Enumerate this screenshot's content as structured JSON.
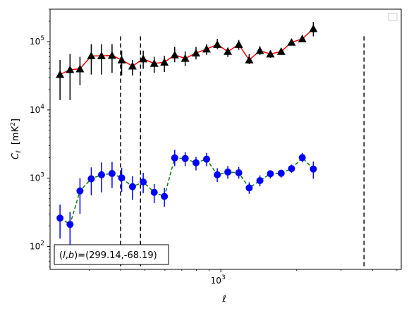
{
  "chart_data": {
    "type": "scatter",
    "title": "",
    "xlabel": "ℓ",
    "ylabel_main": "C",
    "ylabel_sub": "ℓ",
    "ylabel_unit_open": "[mK",
    "ylabel_unit_sup": "2",
    "ylabel_unit_close": "]",
    "x_scale": "log",
    "y_scale": "log",
    "xlim": [
      210,
      5200
    ],
    "ylim": [
      46,
      300000
    ],
    "xticks": [
      {
        "value": 1000,
        "base": "10",
        "exp": "3"
      }
    ],
    "yticks": [
      {
        "value": 100,
        "base": "10",
        "exp": "2"
      },
      {
        "value": 1000,
        "base": "10",
        "exp": "3"
      },
      {
        "value": 10000,
        "base": "10",
        "exp": "4"
      },
      {
        "value": 100000,
        "base": "10",
        "exp": "5"
      }
    ],
    "grid": false,
    "legend": "top-right (empty)",
    "annotation": "(l,b)=(299.14,-68.19)",
    "annotation_parts": {
      "open": "(",
      "l": "l",
      "comma1": ",",
      "b": "b",
      "rest": ")=(299.14,-68.19)"
    },
    "vertical_lines": [
      {
        "x": 400,
        "color": "#000000",
        "style": "dashed"
      },
      {
        "x": 480,
        "color": "#000000",
        "style": "dashed"
      },
      {
        "x": 3700,
        "color": "#000000",
        "style": "dashed"
      }
    ],
    "series": [
      {
        "marker": "triangle",
        "line_color": "#ff0000",
        "line_style": "solid",
        "marker_color": "#000000",
        "errorbar_color": "#000000",
        "points": [
          {
            "x": 230,
            "y": 33000,
            "lo": 14000,
            "hi": 54000
          },
          {
            "x": 252,
            "y": 39000,
            "lo": 14000,
            "hi": 66000
          },
          {
            "x": 276,
            "y": 40000,
            "lo": 23000,
            "hi": 60000
          },
          {
            "x": 306,
            "y": 62000,
            "lo": 33000,
            "hi": 92000
          },
          {
            "x": 336,
            "y": 62000,
            "lo": 33000,
            "hi": 92000
          },
          {
            "x": 370,
            "y": 63000,
            "lo": 35000,
            "hi": 92000
          },
          {
            "x": 404,
            "y": 54000,
            "lo": 32000,
            "hi": 74000
          },
          {
            "x": 446,
            "y": 44000,
            "lo": 32000,
            "hi": 54000
          },
          {
            "x": 492,
            "y": 56000,
            "lo": 40000,
            "hi": 74000
          },
          {
            "x": 544,
            "y": 48000,
            "lo": 35000,
            "hi": 60000
          },
          {
            "x": 597,
            "y": 50000,
            "lo": 36000,
            "hi": 62000
          },
          {
            "x": 656,
            "y": 64000,
            "lo": 50000,
            "hi": 84000
          },
          {
            "x": 722,
            "y": 57000,
            "lo": 44000,
            "hi": 72000
          },
          {
            "x": 797,
            "y": 68000,
            "lo": 55000,
            "hi": 84000
          },
          {
            "x": 878,
            "y": 78000,
            "lo": 64000,
            "hi": 92000
          },
          {
            "x": 968,
            "y": 91000,
            "lo": 78000,
            "hi": 110000
          },
          {
            "x": 1066,
            "y": 72000,
            "lo": 60000,
            "hi": 82000
          },
          {
            "x": 1178,
            "y": 91000,
            "lo": 76000,
            "hi": 106000
          },
          {
            "x": 1296,
            "y": 54000,
            "lo": 47000,
            "hi": 66000
          },
          {
            "x": 1429,
            "y": 74000,
            "lo": 64000,
            "hi": 86000
          },
          {
            "x": 1573,
            "y": 66000,
            "lo": 58000,
            "hi": 74000
          },
          {
            "x": 1736,
            "y": 72000,
            "lo": 64000,
            "hi": 80000
          },
          {
            "x": 1908,
            "y": 98000,
            "lo": 88000,
            "hi": 108000
          },
          {
            "x": 2105,
            "y": 110000,
            "lo": 98000,
            "hi": 126000
          },
          {
            "x": 2329,
            "y": 155000,
            "lo": 120000,
            "hi": 195000
          }
        ]
      },
      {
        "marker": "circle",
        "line_color": "#008000",
        "line_style": "dashed",
        "marker_color": "#0000ff",
        "errorbar_color": "#0000ff",
        "points": [
          {
            "x": 230,
            "y": 260,
            "lo": 130,
            "hi": 410
          },
          {
            "x": 252,
            "y": 210,
            "lo": 100,
            "hi": 320
          },
          {
            "x": 276,
            "y": 650,
            "lo": 300,
            "hi": 1000
          },
          {
            "x": 306,
            "y": 980,
            "lo": 560,
            "hi": 1440
          },
          {
            "x": 336,
            "y": 1120,
            "lo": 620,
            "hi": 1700
          },
          {
            "x": 370,
            "y": 1170,
            "lo": 720,
            "hi": 1730
          },
          {
            "x": 404,
            "y": 1010,
            "lo": 630,
            "hi": 1420
          },
          {
            "x": 446,
            "y": 750,
            "lo": 480,
            "hi": 1070
          },
          {
            "x": 492,
            "y": 880,
            "lo": 600,
            "hi": 1200
          },
          {
            "x": 544,
            "y": 620,
            "lo": 430,
            "hi": 820
          },
          {
            "x": 597,
            "y": 540,
            "lo": 380,
            "hi": 720
          },
          {
            "x": 656,
            "y": 1980,
            "lo": 1500,
            "hi": 2600
          },
          {
            "x": 722,
            "y": 1940,
            "lo": 1500,
            "hi": 2400
          },
          {
            "x": 797,
            "y": 1680,
            "lo": 1300,
            "hi": 2050
          },
          {
            "x": 878,
            "y": 1900,
            "lo": 1500,
            "hi": 2350
          },
          {
            "x": 968,
            "y": 1120,
            "lo": 880,
            "hi": 1400
          },
          {
            "x": 1066,
            "y": 1230,
            "lo": 980,
            "hi": 1500
          },
          {
            "x": 1178,
            "y": 1200,
            "lo": 980,
            "hi": 1460
          },
          {
            "x": 1296,
            "y": 720,
            "lo": 590,
            "hi": 870
          },
          {
            "x": 1429,
            "y": 920,
            "lo": 760,
            "hi": 1100
          },
          {
            "x": 1573,
            "y": 1160,
            "lo": 990,
            "hi": 1300
          },
          {
            "x": 1736,
            "y": 1180,
            "lo": 1020,
            "hi": 1330
          },
          {
            "x": 1908,
            "y": 1380,
            "lo": 1200,
            "hi": 1580
          },
          {
            "x": 2105,
            "y": 2000,
            "lo": 1700,
            "hi": 2350
          },
          {
            "x": 2329,
            "y": 1360,
            "lo": 980,
            "hi": 1750
          }
        ]
      }
    ]
  }
}
